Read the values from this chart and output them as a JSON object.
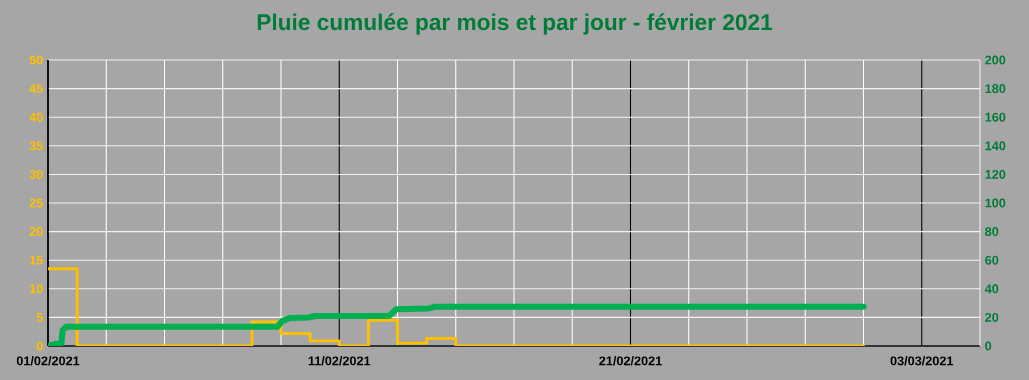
{
  "chart_data": {
    "type": "line",
    "title": "Pluie cumulée par mois et par jour - février 2021",
    "xlim": [
      "2021-02-01",
      "2021-03-05"
    ],
    "xticks": [
      {
        "value": "2021-02-01",
        "label": "01/02/2021"
      },
      {
        "value": "2021-02-03",
        "label": null
      },
      {
        "value": "2021-02-05",
        "label": null
      },
      {
        "value": "2021-02-07",
        "label": null
      },
      {
        "value": "2021-02-09",
        "label": null
      },
      {
        "value": "2021-02-11",
        "label": "11/02/2021"
      },
      {
        "value": "2021-02-13",
        "label": null
      },
      {
        "value": "2021-02-15",
        "label": null
      },
      {
        "value": "2021-02-17",
        "label": null
      },
      {
        "value": "2021-02-19",
        "label": null
      },
      {
        "value": "2021-02-21",
        "label": "21/02/2021"
      },
      {
        "value": "2021-02-23",
        "label": null
      },
      {
        "value": "2021-02-25",
        "label": null
      },
      {
        "value": "2021-02-27",
        "label": null
      },
      {
        "value": "2021-03-01",
        "label": null
      },
      {
        "value": "2021-03-03",
        "label": "03/03/2021"
      }
    ],
    "ylim": [
      0,
      50
    ],
    "yticks": [
      0,
      5,
      10,
      15,
      20,
      25,
      30,
      35,
      40,
      45,
      50
    ],
    "y2lim": [
      0,
      200
    ],
    "y2ticks": [
      0,
      20,
      40,
      60,
      80,
      100,
      120,
      140,
      160,
      180,
      200
    ],
    "grid": true,
    "series": [
      {
        "type": "step",
        "axis": "y",
        "color": "#ffc000",
        "x": [
          "2021-02-01",
          "2021-02-02",
          "2021-02-03",
          "2021-02-04",
          "2021-02-05",
          "2021-02-06",
          "2021-02-07",
          "2021-02-08",
          "2021-02-09",
          "2021-02-10",
          "2021-02-11",
          "2021-02-12",
          "2021-02-13",
          "2021-02-14",
          "2021-02-15",
          "2021-02-16",
          "2021-02-17",
          "2021-02-18",
          "2021-02-19",
          "2021-02-20",
          "2021-02-21",
          "2021-02-22",
          "2021-02-23",
          "2021-02-24",
          "2021-02-25",
          "2021-02-26",
          "2021-02-27",
          "2021-02-28",
          "2021-03-01"
        ],
        "values": [
          13.5,
          0,
          0,
          0,
          0,
          0,
          0,
          4.2,
          2.2,
          0.9,
          0,
          4.5,
          0.5,
          1.3,
          0,
          0,
          0,
          0,
          0,
          0,
          0,
          0,
          0,
          0,
          0,
          0,
          0,
          0,
          0
        ]
      },
      {
        "axis": "y2",
        "color": "#00b050",
        "x": [
          "2021-02-01T00:00",
          "2021-02-01T06:00",
          "2021-02-01T11:00",
          "2021-02-01T12:00",
          "2021-02-01T15:00",
          "2021-02-08T21:00",
          "2021-02-09T01:00",
          "2021-02-09T07:00",
          "2021-02-09T23:00",
          "2021-02-10T04:00",
          "2021-02-12T17:00",
          "2021-02-12T23:00",
          "2021-02-14T02:00",
          "2021-02-14T07:00",
          "2021-03-01T00:00"
        ],
        "values": [
          0,
          1.5,
          2,
          11,
          13.5,
          13.5,
          17.5,
          19.5,
          20,
          21,
          21,
          25.7,
          26.3,
          27.5,
          27.5
        ]
      }
    ]
  }
}
